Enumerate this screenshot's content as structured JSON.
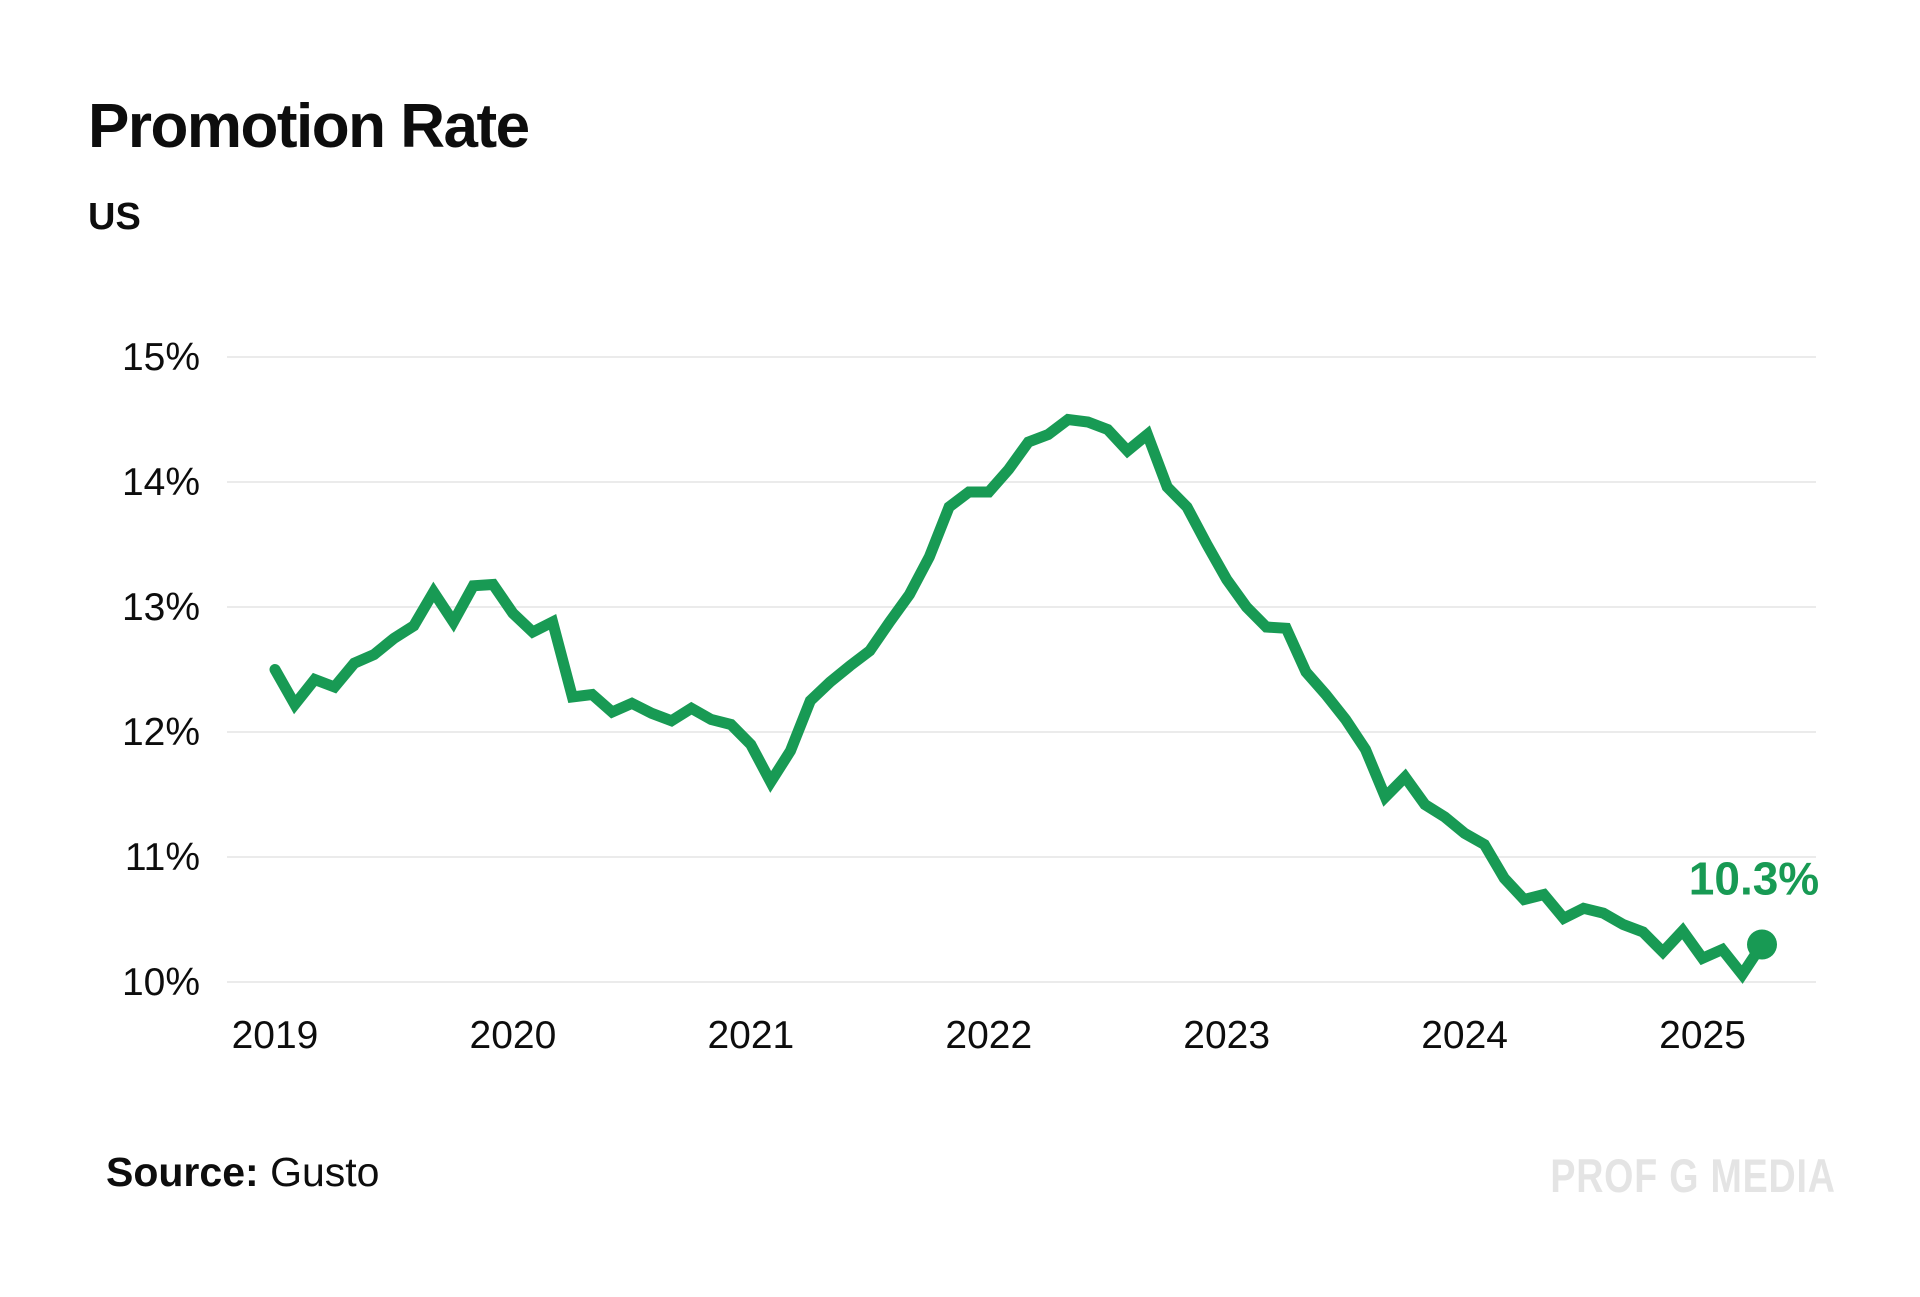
{
  "header": {
    "title": "Promotion Rate",
    "subtitle": "US"
  },
  "footer": {
    "source_label": "Source:",
    "source_value": "Gusto",
    "watermark": "PROF G MEDIA"
  },
  "colors": {
    "line": "#189a54",
    "annotation": "#189a54",
    "grid": "#ebebeb",
    "axis_text": "#0d0d0d",
    "watermark": "#e4e4e4",
    "background": "#ffffff"
  },
  "chart_data": {
    "type": "line",
    "title": "Promotion Rate",
    "subtitle": "US",
    "xlabel": "",
    "ylabel": "",
    "unit": "%",
    "ylim": [
      10,
      15
    ],
    "grid": "horizontal",
    "legend_position": "none",
    "x_frequency": "monthly",
    "x_range": [
      "2019-01",
      "2025-04"
    ],
    "x_tick_labels": [
      "2019",
      "2020",
      "2021",
      "2022",
      "2023",
      "2024",
      "2025"
    ],
    "y_tick_labels": [
      "15%",
      "14%",
      "13%",
      "12%",
      "11%",
      "10%"
    ],
    "y_tick_values": [
      15,
      14,
      13,
      12,
      11,
      10
    ],
    "annotation": {
      "text": "10.3%",
      "value": 10.3
    },
    "last_point_marker": true,
    "series": [
      {
        "name": "US promotion rate",
        "values": [
          12.5,
          12.22,
          12.42,
          12.36,
          12.55,
          12.62,
          12.75,
          12.85,
          13.12,
          12.88,
          13.17,
          13.18,
          12.95,
          12.8,
          12.88,
          12.28,
          12.3,
          12.16,
          12.23,
          12.15,
          12.09,
          12.19,
          12.1,
          12.06,
          11.9,
          11.6,
          11.85,
          12.25,
          12.4,
          12.53,
          12.65,
          12.88,
          13.1,
          13.4,
          13.8,
          13.92,
          13.92,
          14.1,
          14.32,
          14.38,
          14.5,
          14.48,
          14.42,
          14.25,
          14.38,
          13.96,
          13.8,
          13.5,
          13.22,
          13.0,
          12.84,
          12.83,
          12.48,
          12.3,
          12.1,
          11.86,
          11.48,
          11.64,
          11.42,
          11.32,
          11.19,
          11.1,
          10.83,
          10.66,
          10.7,
          10.51,
          10.59,
          10.55,
          10.46,
          10.4,
          10.24,
          10.41,
          10.19,
          10.26,
          10.06,
          10.3
        ]
      }
    ]
  }
}
